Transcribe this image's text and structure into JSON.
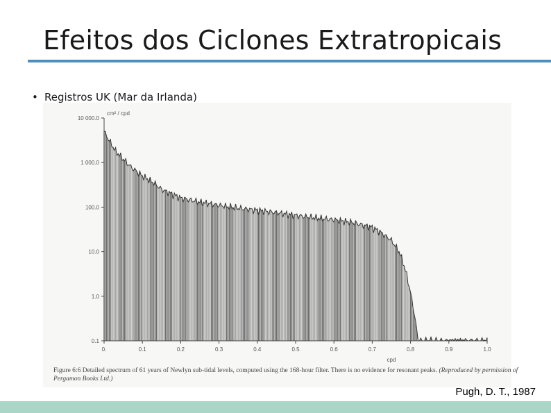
{
  "slide": {
    "title": "Efeitos dos Ciclones Extratropicais",
    "bullet": "Registros UK (Mar da Irlanda)",
    "citation": "Pugh, D. T., 1987",
    "caption_prefix": "Figure 6:6",
    "caption_body": "Detailed spectrum of 61 years of Newlyn sub-tidal levels, computed using the 168-hour filter. There is no evidence for resonant peaks.",
    "caption_italic": "(Reproduced by permission of Pergamon Books Ltd.)"
  },
  "colors": {
    "title_rule": "#4b8fc0",
    "footer_band": "#a9d6c7",
    "bars": "#7a7a7a",
    "outline": "#333333"
  },
  "chart_data": {
    "type": "bar",
    "ylabel": "cm² / cpd",
    "xlabel": "cpd",
    "x_ticks": [
      "0.",
      "0.1",
      "0.2",
      "0.3",
      "0.4",
      "0.5",
      "0.6",
      "0.7",
      "0.8",
      "0.9",
      "1.0"
    ],
    "y_ticks": [
      "10 000.0",
      "1 000.0",
      "100.0",
      "10.0",
      "1.0",
      "0.1"
    ],
    "xlim": [
      0,
      1.0
    ],
    "ylim": [
      0.1,
      10000
    ],
    "yscale": "log",
    "grid": false,
    "envelope": {
      "x": [
        0.0,
        0.01,
        0.02,
        0.03,
        0.05,
        0.07,
        0.1,
        0.13,
        0.15,
        0.2,
        0.25,
        0.3,
        0.35,
        0.4,
        0.45,
        0.5,
        0.55,
        0.6,
        0.65,
        0.7,
        0.72,
        0.75,
        0.77,
        0.78,
        0.79,
        0.8,
        0.81,
        0.82,
        0.83,
        1.0
      ],
      "y": [
        5000,
        3500,
        2500,
        1800,
        1200,
        800,
        500,
        350,
        250,
        160,
        130,
        110,
        95,
        85,
        75,
        65,
        58,
        52,
        45,
        35,
        28,
        18,
        10,
        6,
        3,
        1.2,
        0.4,
        0.1,
        0.1,
        0.1
      ]
    }
  }
}
